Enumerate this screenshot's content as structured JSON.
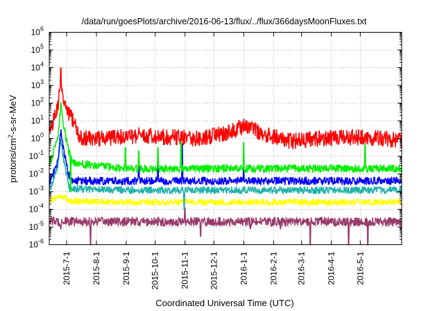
{
  "chart_data": {
    "type": "line",
    "title": "/data/run/goesPlots/archive/2016-06-13/flux/../flux/366daysMoonFluxes.txt",
    "xlabel": "Coordinated Universal Time (UTC)",
    "ylabel_parts": [
      "protons/cm",
      "2",
      "-s-sr-MeV"
    ],
    "yscale": "log",
    "ylim": [
      1e-06,
      1000000.0
    ],
    "y_ticks": [
      {
        "exp": -6,
        "label_base": "10",
        "label_exp": "-6"
      },
      {
        "exp": -5,
        "label_base": "10",
        "label_exp": "-5"
      },
      {
        "exp": -4,
        "label_base": "10",
        "label_exp": "-4"
      },
      {
        "exp": -3,
        "label_base": "10",
        "label_exp": "-3"
      },
      {
        "exp": -2,
        "label_base": "10",
        "label_exp": "-2"
      },
      {
        "exp": -1,
        "label_base": "10",
        "label_exp": "-1"
      },
      {
        "exp": 0,
        "label_base": "10",
        "label_exp": "0"
      },
      {
        "exp": 1,
        "label_base": "10",
        "label_exp": "1"
      },
      {
        "exp": 2,
        "label_base": "10",
        "label_exp": "2"
      },
      {
        "exp": 3,
        "label_base": "10",
        "label_exp": "3"
      },
      {
        "exp": 4,
        "label_base": "10",
        "label_exp": "4"
      },
      {
        "exp": 5,
        "label_base": "10",
        "label_exp": "5"
      },
      {
        "exp": 6,
        "label_base": "10",
        "label_exp": "6"
      }
    ],
    "xlim": [
      "2015-06-13",
      "2016-06-13"
    ],
    "x_ticks": [
      {
        "date": "2015-07-01",
        "label": "2015-7-1"
      },
      {
        "date": "2015-08-01",
        "label": "2015-8-1"
      },
      {
        "date": "2015-09-01",
        "label": "2015-9-1"
      },
      {
        "date": "2015-10-01",
        "label": "2015-10-1"
      },
      {
        "date": "2015-11-01",
        "label": "2015-11-1"
      },
      {
        "date": "2015-12-01",
        "label": "2015-12-1"
      },
      {
        "date": "2016-01-01",
        "label": "2016-1-1"
      },
      {
        "date": "2016-02-01",
        "label": "2016-2-1"
      },
      {
        "date": "2016-03-01",
        "label": "2016-3-1"
      },
      {
        "date": "2016-04-01",
        "label": "2016-4-1"
      },
      {
        "date": "2016-05-01",
        "label": "2016-5-1"
      }
    ],
    "grid": true,
    "grid_style": "dotted",
    "series": [
      {
        "color": "#973c6a",
        "noise_decades": 0.25,
        "points": [
          [
            "2015-06-13",
            2.5e-05
          ],
          [
            "2015-06-20",
            2e-05
          ],
          [
            "2015-09-01",
            2e-05
          ],
          [
            "2015-12-01",
            2e-05
          ],
          [
            "2016-03-01",
            2e-05
          ],
          [
            "2016-06-13",
            2e-05
          ]
        ],
        "spikes": [
          [
            "2015-06-25",
            8e-06
          ],
          [
            "2015-07-26",
            1e-06
          ],
          [
            "2015-11-01",
            0.00012
          ],
          [
            "2015-11-17",
            3e-06
          ],
          [
            "2016-01-08",
            8e-06
          ],
          [
            "2016-02-08",
            8e-06
          ],
          [
            "2016-03-10",
            1e-06
          ],
          [
            "2016-04-19",
            1e-06
          ],
          [
            "2016-05-09",
            1e-06
          ]
        ]
      },
      {
        "color": "#ffff00",
        "noise_decades": 0.18,
        "points": [
          [
            "2015-06-13",
            0.0003
          ],
          [
            "2015-06-24",
            0.0006
          ],
          [
            "2015-07-05",
            0.0003
          ],
          [
            "2015-09-01",
            0.00025
          ],
          [
            "2015-12-01",
            0.00025
          ],
          [
            "2016-03-01",
            0.00025
          ],
          [
            "2016-06-13",
            0.00025
          ]
        ],
        "spikes": []
      },
      {
        "color": "#20b2aa",
        "noise_decades": 0.2,
        "points": [
          [
            "2015-06-13",
            0.001
          ],
          [
            "2015-06-22",
            0.03
          ],
          [
            "2015-06-25",
            1.0
          ],
          [
            "2015-06-28",
            0.05
          ],
          [
            "2015-07-04",
            0.0015
          ],
          [
            "2015-09-01",
            0.0012
          ],
          [
            "2015-12-01",
            0.0012
          ],
          [
            "2016-03-01",
            0.0012
          ],
          [
            "2016-06-13",
            0.0012
          ]
        ],
        "spikes": [
          [
            "2015-10-31",
            0.0001
          ]
        ]
      },
      {
        "color": "#0000ff",
        "noise_decades": 0.22,
        "points": [
          [
            "2015-06-13",
            0.003
          ],
          [
            "2015-06-22",
            0.05
          ],
          [
            "2015-06-25",
            3.0
          ],
          [
            "2015-06-28",
            0.2
          ],
          [
            "2015-07-03",
            0.01
          ],
          [
            "2015-07-06",
            0.004
          ],
          [
            "2015-09-01",
            0.004
          ],
          [
            "2015-12-01",
            0.004
          ],
          [
            "2016-03-01",
            0.004
          ],
          [
            "2016-06-13",
            0.004
          ]
        ],
        "spikes": [
          [
            "2015-09-14",
            0.05
          ],
          [
            "2015-10-04",
            0.03
          ],
          [
            "2015-10-29",
            0.5
          ],
          [
            "2016-01-01",
            0.02
          ]
        ]
      },
      {
        "color": "#00ee00",
        "noise_decades": 0.22,
        "points": [
          [
            "2015-06-13",
            0.03
          ],
          [
            "2015-06-22",
            1.0
          ],
          [
            "2015-06-25",
            80.0
          ],
          [
            "2015-06-28",
            5
          ],
          [
            "2015-07-03",
            0.2
          ],
          [
            "2015-07-08",
            0.04
          ],
          [
            "2015-09-01",
            0.02
          ],
          [
            "2015-12-01",
            0.02
          ],
          [
            "2016-03-01",
            0.02
          ],
          [
            "2016-06-13",
            0.02
          ]
        ],
        "spikes": [
          [
            "2015-07-05",
            0.001
          ],
          [
            "2015-08-31",
            0.3
          ],
          [
            "2015-09-14",
            0.2
          ],
          [
            "2015-10-04",
            0.3
          ],
          [
            "2015-10-28",
            1.0
          ],
          [
            "2016-01-01",
            0.6
          ],
          [
            "2016-05-06",
            0.5
          ]
        ]
      },
      {
        "color": "#ff0000",
        "noise_decades": 0.45,
        "points": [
          [
            "2015-06-13",
            2
          ],
          [
            "2015-06-22",
            50.0
          ],
          [
            "2015-06-25",
            3000.0
          ],
          [
            "2015-06-28",
            100.0
          ],
          [
            "2015-07-05",
            20.0
          ],
          [
            "2015-07-15",
            1
          ],
          [
            "2015-08-15",
            1
          ],
          [
            "2015-09-15",
            1.5
          ],
          [
            "2015-10-15",
            1.2
          ],
          [
            "2015-11-15",
            1
          ],
          [
            "2015-12-15",
            2
          ],
          [
            "2016-01-01",
            5
          ],
          [
            "2016-01-20",
            2
          ],
          [
            "2016-02-20",
            0.7
          ],
          [
            "2016-03-20",
            1
          ],
          [
            "2016-04-20",
            1.2
          ],
          [
            "2016-05-20",
            1
          ],
          [
            "2016-06-13",
            0.8
          ]
        ],
        "spikes": [
          [
            "2015-06-25",
            10000.0
          ]
        ]
      }
    ]
  }
}
